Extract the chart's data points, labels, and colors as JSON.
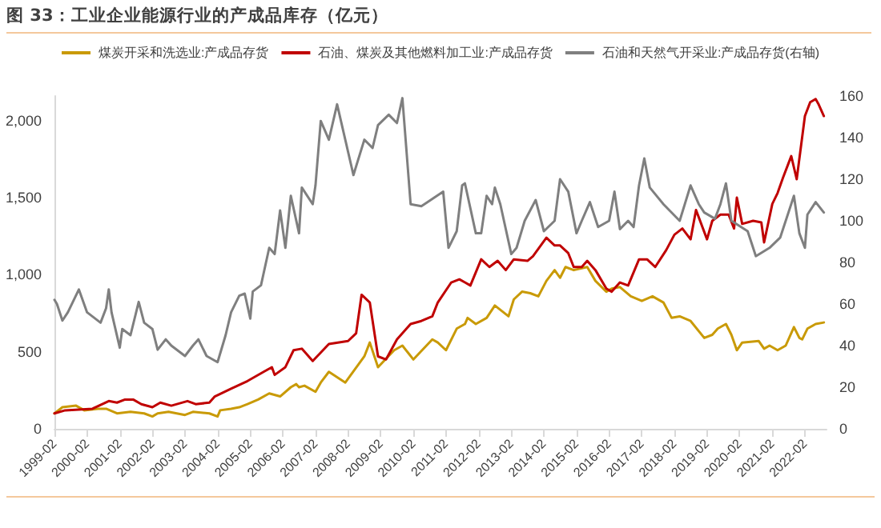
{
  "chart_data": {
    "type": "line",
    "title": "图 33：工业企业能源行业的产成品库存（亿元）",
    "legend": "top",
    "grid": false,
    "marker": "none",
    "line_style": "solid",
    "xlim": [
      "1999-02",
      "2022-10"
    ],
    "xticks": [
      "1999-02",
      "2000-02",
      "2001-02",
      "2002-02",
      "2003-02",
      "2004-02",
      "2005-02",
      "2006-02",
      "2007-02",
      "2008-02",
      "2009-02",
      "2010-02",
      "2011-02",
      "2012-02",
      "2013-02",
      "2014-02",
      "2015-02",
      "2016-02",
      "2017-02",
      "2018-02",
      "2019-02",
      "2020-02",
      "2021-02",
      "2022-02"
    ],
    "ylim": [
      0,
      2160
    ],
    "yticks": [
      0,
      500,
      {
        "value": 1000,
        "label": "1,000"
      },
      {
        "value": 1500,
        "label": "1,500"
      },
      {
        "value": 2000,
        "label": "2,000"
      }
    ],
    "y2lim": [
      0,
      160
    ],
    "y2ticks": [
      0,
      20,
      40,
      60,
      80,
      100,
      120,
      140,
      160
    ],
    "series": [
      {
        "name": "煤炭开采和洗选业:产成品存货",
        "color": "#c99a06",
        "x": [
          "1999-02",
          "1999-05",
          "1999-10",
          "2000-01",
          "2000-06",
          "2000-09",
          "2001-01",
          "2001-06",
          "2001-11",
          "2002-02",
          "2002-04",
          "2002-08",
          "2003-02",
          "2003-05",
          "2003-11",
          "2004-02",
          "2004-03",
          "2004-07",
          "2004-10",
          "2005-01",
          "2005-05",
          "2005-09",
          "2006-01",
          "2006-05",
          "2006-07",
          "2006-08",
          "2006-10",
          "2007-02",
          "2007-04",
          "2007-07",
          "2008-01",
          "2008-08",
          "2008-10",
          "2009-01",
          "2009-07",
          "2009-10",
          "2010-02",
          "2010-09",
          "2010-11",
          "2011-02",
          "2011-06",
          "2011-09",
          "2011-10",
          "2012-01",
          "2012-05",
          "2012-08",
          "2013-01",
          "2013-03",
          "2013-06",
          "2013-09",
          "2013-12",
          "2014-03",
          "2014-06",
          "2014-08",
          "2014-10",
          "2015-01",
          "2015-06",
          "2015-09",
          "2016-01",
          "2016-03",
          "2016-06",
          "2016-10",
          "2017-02",
          "2017-06",
          "2017-10",
          "2018-01",
          "2018-04",
          "2018-08",
          "2019-01",
          "2019-04",
          "2019-06",
          "2019-09",
          "2019-11",
          "2020-01",
          "2020-03",
          "2020-09",
          "2020-11",
          "2021-01",
          "2021-04",
          "2021-07",
          "2021-10",
          "2021-12",
          "2022-01",
          "2022-03",
          "2022-06",
          "2022-09"
        ],
        "values": [
          100,
          140,
          150,
          120,
          130,
          130,
          100,
          110,
          100,
          80,
          100,
          110,
          90,
          110,
          100,
          80,
          120,
          130,
          140,
          160,
          190,
          230,
          210,
          270,
          290,
          270,
          280,
          240,
          300,
          370,
          300,
          470,
          560,
          400,
          510,
          540,
          450,
          580,
          560,
          510,
          650,
          680,
          720,
          680,
          720,
          800,
          730,
          840,
          890,
          880,
          860,
          960,
          1030,
          980,
          1050,
          1030,
          1050,
          960,
          890,
          910,
          920,
          860,
          830,
          860,
          820,
          720,
          730,
          700,
          590,
          610,
          650,
          680,
          610,
          510,
          560,
          570,
          520,
          540,
          510,
          540,
          660,
          590,
          580,
          650,
          680,
          690
        ]
      },
      {
        "name": "石油、煤炭及其他燃料加工业:产成品存货",
        "color": "#c00000",
        "x": [
          "1999-02",
          "1999-06",
          "2000-04",
          "2000-10",
          "2001-01",
          "2001-04",
          "2001-07",
          "2001-10",
          "2002-02",
          "2002-05",
          "2002-09",
          "2003-03",
          "2003-06",
          "2003-11",
          "2004-01",
          "2004-07",
          "2005-01",
          "2005-07",
          "2005-10",
          "2005-11",
          "2006-03",
          "2006-06",
          "2006-09",
          "2007-01",
          "2007-07",
          "2008-02",
          "2008-05",
          "2008-07",
          "2008-10",
          "2009-01",
          "2009-04",
          "2009-08",
          "2010-01",
          "2010-05",
          "2010-09",
          "2010-11",
          "2011-04",
          "2011-07",
          "2011-09",
          "2011-11",
          "2012-03",
          "2012-06",
          "2012-09",
          "2012-12",
          "2013-03",
          "2013-08",
          "2013-10",
          "2014-03",
          "2014-06",
          "2014-08",
          "2014-11",
          "2015-01",
          "2015-04",
          "2015-06",
          "2015-09",
          "2016-01",
          "2016-03",
          "2016-06",
          "2016-09",
          "2017-01",
          "2017-04",
          "2017-07",
          "2017-11",
          "2018-02",
          "2018-05",
          "2018-08",
          "2018-10",
          "2019-02",
          "2019-04",
          "2019-07",
          "2019-10",
          "2019-12",
          "2020-01",
          "2020-03",
          "2020-07",
          "2020-10",
          "2020-11",
          "2021-02",
          "2021-04",
          "2021-06",
          "2021-09",
          "2021-11",
          "2022-02",
          "2022-04",
          "2022-06",
          "2022-07",
          "2022-09"
        ],
        "values": [
          100,
          120,
          130,
          180,
          170,
          190,
          190,
          160,
          140,
          170,
          150,
          180,
          160,
          170,
          210,
          260,
          310,
          370,
          400,
          350,
          400,
          510,
          520,
          440,
          550,
          570,
          620,
          870,
          820,
          470,
          450,
          580,
          680,
          700,
          730,
          820,
          950,
          970,
          950,
          930,
          1100,
          1050,
          1090,
          1030,
          1100,
          1090,
          1120,
          1240,
          1190,
          1190,
          1140,
          1050,
          1050,
          1090,
          1030,
          910,
          890,
          950,
          930,
          1100,
          1100,
          1050,
          1160,
          1260,
          1300,
          1230,
          1420,
          1230,
          1350,
          1390,
          1390,
          1300,
          1500,
          1330,
          1350,
          1340,
          1210,
          1460,
          1530,
          1630,
          1770,
          1620,
          2030,
          2120,
          2140,
          2110,
          2030
        ]
      },
      {
        "name": "石油和天然气开采业:产成品存货(右轴)",
        "color": "#7f7f7f",
        "axis": "y2",
        "x": [
          "1999-02",
          "1999-03",
          "1999-05",
          "1999-07",
          "1999-11",
          "2000-02",
          "2000-07",
          "2000-09",
          "2000-10",
          "2000-11",
          "2001-02",
          "2001-03",
          "2001-06",
          "2001-09",
          "2001-11",
          "2002-02",
          "2002-04",
          "2002-07",
          "2002-09",
          "2003-02",
          "2003-05",
          "2003-07",
          "2003-10",
          "2004-02",
          "2004-05",
          "2004-07",
          "2004-10",
          "2004-12",
          "2005-02",
          "2005-03",
          "2005-06",
          "2005-09",
          "2005-11",
          "2006-01",
          "2006-03",
          "2006-05",
          "2006-08",
          "2006-09",
          "2007-01",
          "2007-02",
          "2007-04",
          "2007-07",
          "2007-10",
          "2008-04",
          "2008-08",
          "2008-11",
          "2009-01",
          "2009-05",
          "2009-08",
          "2009-10",
          "2010-01",
          "2010-05",
          "2011-01",
          "2011-03",
          "2011-06",
          "2011-08",
          "2011-09",
          "2012-01",
          "2012-03",
          "2012-05",
          "2012-07",
          "2012-08",
          "2012-10",
          "2013-02",
          "2013-04",
          "2013-07",
          "2013-11",
          "2014-02",
          "2014-06",
          "2014-08",
          "2014-11",
          "2015-02",
          "2015-04",
          "2015-07",
          "2015-10",
          "2016-02",
          "2016-04",
          "2016-06",
          "2016-09",
          "2016-11",
          "2017-01",
          "2017-03",
          "2017-05",
          "2017-10",
          "2018-04",
          "2018-08",
          "2018-11",
          "2019-01",
          "2019-05",
          "2019-07",
          "2019-09",
          "2019-11",
          "2020-05",
          "2020-08",
          "2021-01",
          "2021-05",
          "2021-10",
          "2021-12",
          "2022-02",
          "2022-03",
          "2022-06",
          "2022-09"
        ],
        "values": [
          62,
          60,
          52,
          56,
          67,
          56,
          51,
          58,
          67,
          56,
          39,
          48,
          45,
          61,
          51,
          48,
          38,
          43,
          40,
          35,
          40,
          43,
          35,
          32,
          45,
          56,
          64,
          65,
          53,
          66,
          69,
          87,
          84,
          105,
          87,
          112,
          94,
          116,
          108,
          117,
          148,
          139,
          156,
          122,
          139,
          135,
          146,
          151,
          147,
          159,
          108,
          107,
          114,
          87,
          95,
          117,
          118,
          94,
          94,
          112,
          108,
          116,
          108,
          84,
          87,
          100,
          110,
          95,
          100,
          120,
          114,
          94,
          100,
          109,
          97,
          100,
          114,
          96,
          100,
          97,
          117,
          130,
          116,
          108,
          100,
          117,
          108,
          104,
          101,
          108,
          118,
          100,
          95,
          83,
          87,
          92,
          112,
          94,
          87,
          103,
          109,
          104
        ]
      }
    ]
  }
}
